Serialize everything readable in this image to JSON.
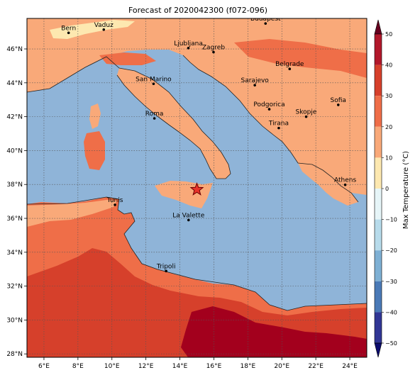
{
  "title": "Forecast of 2020042300 (f072-096)",
  "map": {
    "lon_range": [
      5,
      25
    ],
    "lat_range": [
      27.8,
      47.8
    ],
    "lon_ticks": [
      {
        "value": 6,
        "label": "6°E"
      },
      {
        "value": 8,
        "label": "8°E"
      },
      {
        "value": 10,
        "label": "10°E"
      },
      {
        "value": 12,
        "label": "12°E"
      },
      {
        "value": 14,
        "label": "14°E"
      },
      {
        "value": 16,
        "label": "16°E"
      },
      {
        "value": 18,
        "label": "18°E"
      },
      {
        "value": 20,
        "label": "20°E"
      },
      {
        "value": 22,
        "label": "22°E"
      },
      {
        "value": 24,
        "label": "24°E"
      }
    ],
    "lat_ticks": [
      {
        "value": 28,
        "label": "28°N"
      },
      {
        "value": 30,
        "label": "30°N"
      },
      {
        "value": 32,
        "label": "32°N"
      },
      {
        "value": 34,
        "label": "34°N"
      },
      {
        "value": 36,
        "label": "36°N"
      },
      {
        "value": 38,
        "label": "38°N"
      },
      {
        "value": 40,
        "label": "40°N"
      },
      {
        "value": 42,
        "label": "42°N"
      },
      {
        "value": 44,
        "label": "44°N"
      },
      {
        "value": 46,
        "label": "46°N"
      }
    ],
    "gridlines": true,
    "sea_color": "#8fb4d8",
    "cities": [
      {
        "name": "Bern",
        "lon": 7.45,
        "lat": 46.95
      },
      {
        "name": "Vaduz",
        "lon": 9.52,
        "lat": 47.14
      },
      {
        "name": "Budapest",
        "lon": 19.04,
        "lat": 47.5
      },
      {
        "name": "Ljubljana",
        "lon": 14.5,
        "lat": 46.05
      },
      {
        "name": "Zagreb",
        "lon": 15.98,
        "lat": 45.81
      },
      {
        "name": "Belgrade",
        "lon": 20.46,
        "lat": 44.82
      },
      {
        "name": "San Marino",
        "lon": 12.45,
        "lat": 43.94
      },
      {
        "name": "Sarajevo",
        "lon": 18.41,
        "lat": 43.86
      },
      {
        "name": "Sofia",
        "lon": 23.32,
        "lat": 42.7
      },
      {
        "name": "Podgorica",
        "lon": 19.26,
        "lat": 42.44
      },
      {
        "name": "Skopje",
        "lon": 21.43,
        "lat": 42.0
      },
      {
        "name": "Roma",
        "lon": 12.5,
        "lat": 41.9
      },
      {
        "name": "Tirana",
        "lon": 19.82,
        "lat": 41.33
      },
      {
        "name": "Athens",
        "lon": 23.73,
        "lat": 37.98
      },
      {
        "name": "Tunis",
        "lon": 10.18,
        "lat": 36.8
      },
      {
        "name": "La Valette",
        "lon": 14.51,
        "lat": 35.9
      },
      {
        "name": "Tripoli",
        "lon": 13.19,
        "lat": 32.89
      }
    ],
    "marker": {
      "symbol": "star",
      "lon": 15.0,
      "lat": 37.7,
      "color": "#e8332a"
    }
  },
  "colorbar": {
    "label": "Max Temperature (°C)",
    "ticks": [
      "50",
      "40",
      "30",
      "20",
      "10",
      "0",
      "−10",
      "−20",
      "−30",
      "−40",
      "−50"
    ],
    "colors": [
      "#67001f",
      "#b2182b",
      "#d6402b",
      "#ef6e48",
      "#f9a979",
      "#fde8b0",
      "#e6f5f8",
      "#b7dbeb",
      "#7eb0d4",
      "#4a7ab7",
      "#313695",
      "#0c0c6e"
    ]
  }
}
